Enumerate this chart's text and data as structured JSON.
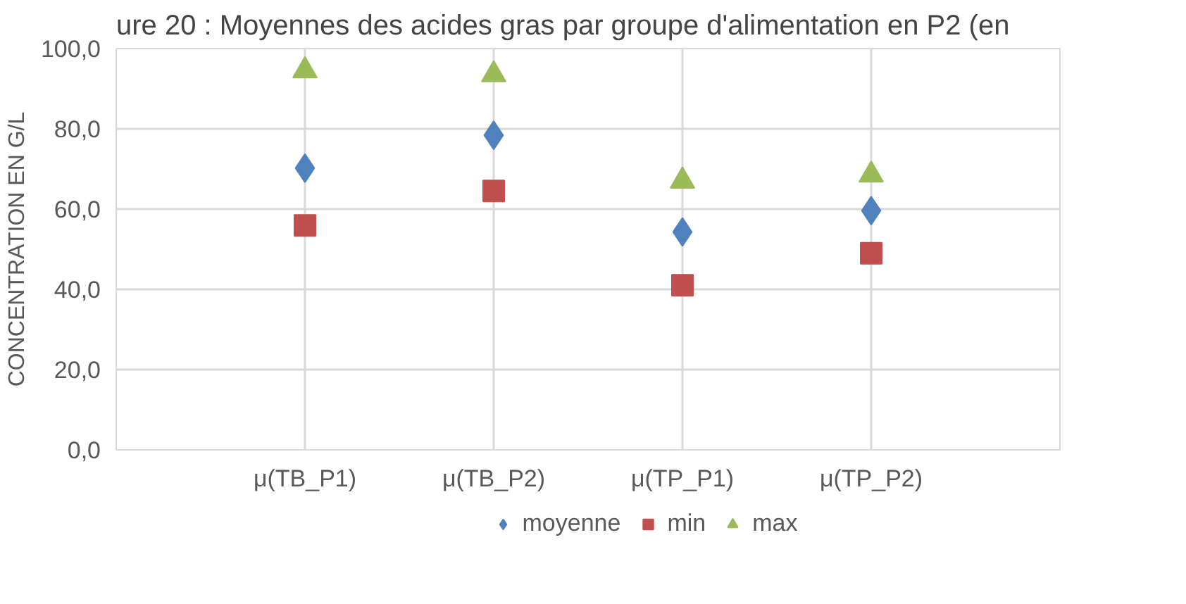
{
  "chart_data": {
    "type": "scatter",
    "title": "ure 20 : Moyennes des acides gras par groupe d'alimentation en P2 (en",
    "ylabel": "CONCENTRATION EN G/L",
    "categories": [
      "μ(TB_P1)",
      "μ(TB_P2)",
      "μ(TP_P1)",
      "μ(TP_P2)"
    ],
    "series": [
      {
        "name": "moyenne",
        "color": "#4f81bd",
        "marker": "diamond",
        "values": [
          70.2,
          78.4,
          54.3,
          59.6
        ]
      },
      {
        "name": "min",
        "color": "#c0504d",
        "marker": "square",
        "values": [
          55.9,
          64.5,
          41.0,
          49.0
        ]
      },
      {
        "name": "max",
        "color": "#9bbb59",
        "marker": "triangle",
        "values": [
          94.5,
          93.5,
          67.0,
          68.5
        ]
      }
    ],
    "ylim": [
      0,
      100
    ],
    "yticks": [
      {
        "value": 0,
        "label": "0,0"
      },
      {
        "value": 20,
        "label": "20,0"
      },
      {
        "value": 40,
        "label": "40,0"
      },
      {
        "value": 60,
        "label": "60,0"
      },
      {
        "value": 80,
        "label": "80,0"
      },
      {
        "value": 100,
        "label": "100,0"
      }
    ],
    "grid": true,
    "legend": "bottom"
  }
}
